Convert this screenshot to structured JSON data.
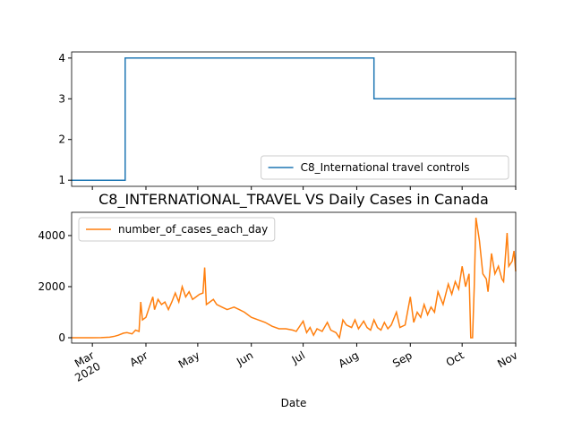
{
  "chart_data": [
    {
      "type": "line",
      "series": [
        {
          "name": "C8_International travel controls",
          "color": "#1f77b4",
          "x": [
            -12,
            19,
            19,
            163,
            163,
            245
          ],
          "values": [
            1,
            1,
            4,
            4,
            3,
            3
          ]
        }
      ],
      "xlim": [
        -12,
        245
      ],
      "ylim": [
        0.85,
        4.15
      ],
      "yticks": [
        1,
        2,
        3,
        4
      ],
      "legend": "lower right"
    },
    {
      "type": "line",
      "title": "C8_INTERNATIONAL_TRAVEL VS Daily Cases in Canada",
      "xlabel": "Date",
      "series": [
        {
          "name": "number_of_cases_each_day",
          "color": "#ff7f0e",
          "x": [
            -12,
            0,
            5,
            10,
            13,
            15,
            18,
            20,
            23,
            25,
            27,
            28,
            29,
            31,
            33,
            35,
            36,
            38,
            40,
            42,
            44,
            46,
            48,
            50,
            52,
            54,
            56,
            58,
            60,
            62,
            64,
            65,
            66,
            68,
            70,
            72,
            75,
            78,
            82,
            85,
            88,
            92,
            96,
            100,
            104,
            108,
            112,
            116,
            118,
            122,
            124,
            126,
            128,
            130,
            133,
            136,
            138,
            141,
            143,
            145,
            147,
            150,
            152,
            154,
            157,
            159,
            161,
            163,
            165,
            167,
            169,
            171,
            173,
            176,
            178,
            181,
            184,
            186,
            188,
            190,
            192,
            194,
            196,
            198,
            200,
            203,
            206,
            208,
            210,
            212,
            214,
            216,
            218,
            219,
            220,
            221,
            222,
            224,
            226,
            228,
            229,
            231,
            233,
            235,
            237,
            238,
            240,
            241,
            243,
            244,
            245
          ],
          "values": [
            0,
            0,
            5,
            20,
            60,
            100,
            180,
            200,
            150,
            300,
            250,
            1400,
            700,
            800,
            1200,
            1600,
            1100,
            1500,
            1300,
            1400,
            1100,
            1400,
            1750,
            1400,
            2000,
            1600,
            1800,
            1500,
            1600,
            1700,
            1750,
            2750,
            1300,
            1400,
            1500,
            1300,
            1200,
            1100,
            1200,
            1100,
            1000,
            800,
            700,
            600,
            450,
            350,
            350,
            300,
            250,
            650,
            200,
            400,
            100,
            350,
            250,
            600,
            300,
            200,
            0,
            700,
            500,
            400,
            700,
            350,
            650,
            400,
            300,
            700,
            400,
            300,
            600,
            350,
            500,
            1000,
            400,
            500,
            1600,
            600,
            1000,
            800,
            1300,
            900,
            1200,
            1000,
            1800,
            1300,
            2100,
            1700,
            2200,
            1900,
            2800,
            2000,
            2500,
            0,
            0,
            2000,
            4700,
            3800,
            2500,
            2300,
            1800,
            3300,
            2500,
            2800,
            2300,
            2200,
            4100,
            2800,
            3000,
            3400,
            2600
          ]
        }
      ],
      "xlim": [
        -12,
        245
      ],
      "xticks": [
        {
          "value": 0,
          "label": "Mar\n2020"
        },
        {
          "value": 31,
          "label": "Apr"
        },
        {
          "value": 61,
          "label": "May"
        },
        {
          "value": 92,
          "label": "Jun"
        },
        {
          "value": 122,
          "label": "Jul"
        },
        {
          "value": 153,
          "label": "Aug"
        },
        {
          "value": 184,
          "label": "Sep"
        },
        {
          "value": 214,
          "label": "Oct"
        },
        {
          "value": 245,
          "label": "Nov"
        }
      ],
      "ylim": [
        -210,
        4910
      ],
      "yticks": [
        0,
        2000,
        4000
      ],
      "legend": "upper left"
    }
  ]
}
